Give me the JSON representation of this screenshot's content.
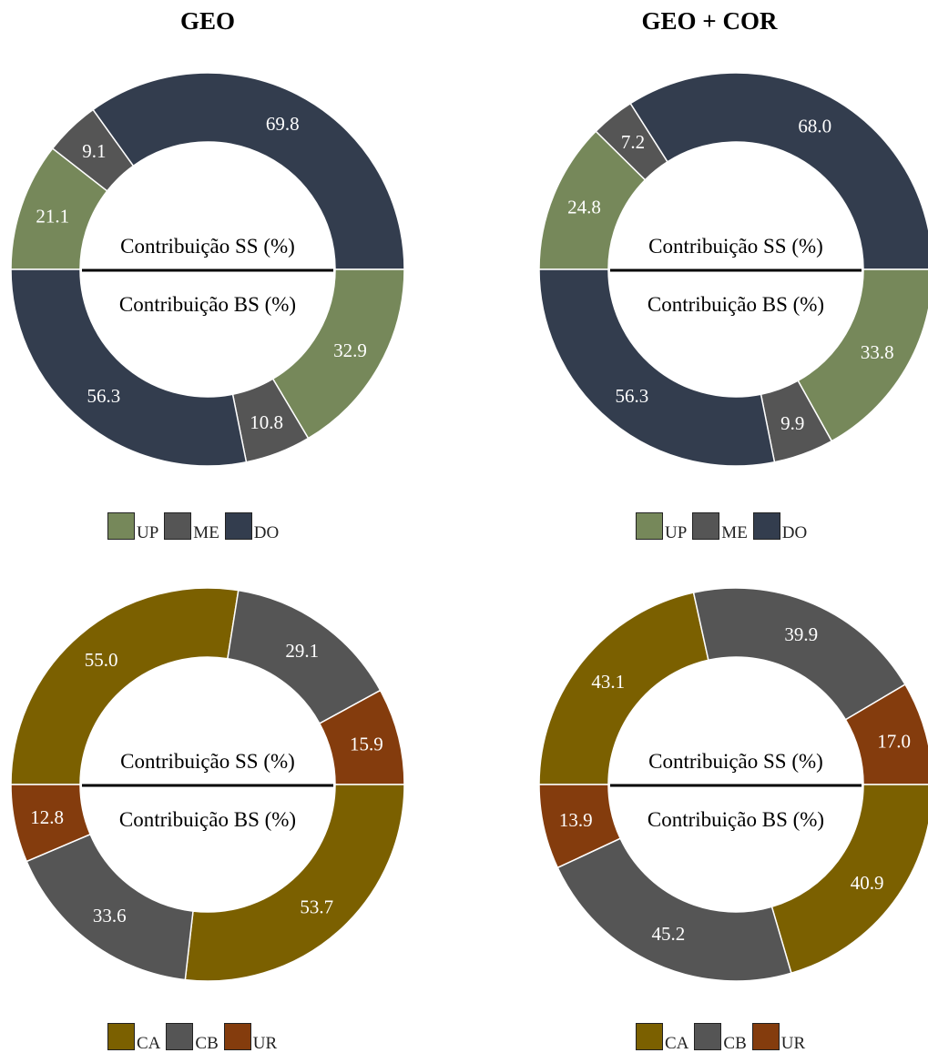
{
  "titles": {
    "left": "GEO",
    "right": "GEO + COR"
  },
  "center_labels": {
    "top": "Contribuição SS (%)",
    "bottom": "Contribuição BS (%)"
  },
  "legends": {
    "top": [
      {
        "label": "UP",
        "color": "#76885A"
      },
      {
        "label": "ME",
        "color": "#555555"
      },
      {
        "label": "DO",
        "color": "#333D4E"
      }
    ],
    "bottom": [
      {
        "label": "CA",
        "color": "#7B6000"
      },
      {
        "label": "CB",
        "color": "#555555"
      },
      {
        "label": "UR",
        "color": "#843C0D"
      }
    ]
  },
  "chart_data": [
    {
      "type": "pie",
      "panel": "GEO",
      "title": "GEO",
      "inner_labels": [
        "Contribuição SS (%)",
        "Contribuição BS (%)"
      ],
      "rings": [
        {
          "name": "Contribuição SS (%)",
          "half": "top",
          "categories": [
            "UP",
            "ME",
            "DO"
          ],
          "values": [
            21.1,
            9.1,
            69.8
          ]
        },
        {
          "name": "Contribuição BS (%)",
          "half": "bottom",
          "categories": [
            "UP",
            "ME",
            "DO"
          ],
          "values": [
            32.9,
            10.8,
            56.3
          ]
        }
      ]
    },
    {
      "type": "pie",
      "panel": "GEO + COR",
      "title": "GEO + COR",
      "inner_labels": [
        "Contribuição SS (%)",
        "Contribuição BS (%)"
      ],
      "rings": [
        {
          "name": "Contribuição SS (%)",
          "half": "top",
          "categories": [
            "UP",
            "ME",
            "DO"
          ],
          "values": [
            24.8,
            7.2,
            68.0
          ]
        },
        {
          "name": "Contribuição BS (%)",
          "half": "bottom",
          "categories": [
            "UP",
            "ME",
            "DO"
          ],
          "values": [
            33.8,
            9.9,
            56.3
          ]
        }
      ]
    },
    {
      "type": "pie",
      "panel": "GEO",
      "title": "",
      "inner_labels": [
        "Contribuição SS (%)",
        "Contribuição BS (%)"
      ],
      "rings": [
        {
          "name": "Contribuição SS (%)",
          "half": "top",
          "categories": [
            "CA",
            "CB",
            "UR"
          ],
          "values": [
            55.0,
            29.1,
            15.9
          ]
        },
        {
          "name": "Contribuição BS (%)",
          "half": "bottom",
          "categories": [
            "CA",
            "CB",
            "UR"
          ],
          "values": [
            53.7,
            33.6,
            12.8
          ]
        }
      ]
    },
    {
      "type": "pie",
      "panel": "GEO + COR",
      "title": "",
      "inner_labels": [
        "Contribuição SS (%)",
        "Contribuição BS (%)"
      ],
      "rings": [
        {
          "name": "Contribuição SS (%)",
          "half": "top",
          "categories": [
            "CA",
            "CB",
            "UR"
          ],
          "values": [
            43.1,
            39.9,
            17.0
          ]
        },
        {
          "name": "Contribuição BS (%)",
          "half": "bottom",
          "categories": [
            "CA",
            "CB",
            "UR"
          ],
          "values": [
            40.9,
            45.2,
            13.9
          ]
        }
      ]
    }
  ]
}
